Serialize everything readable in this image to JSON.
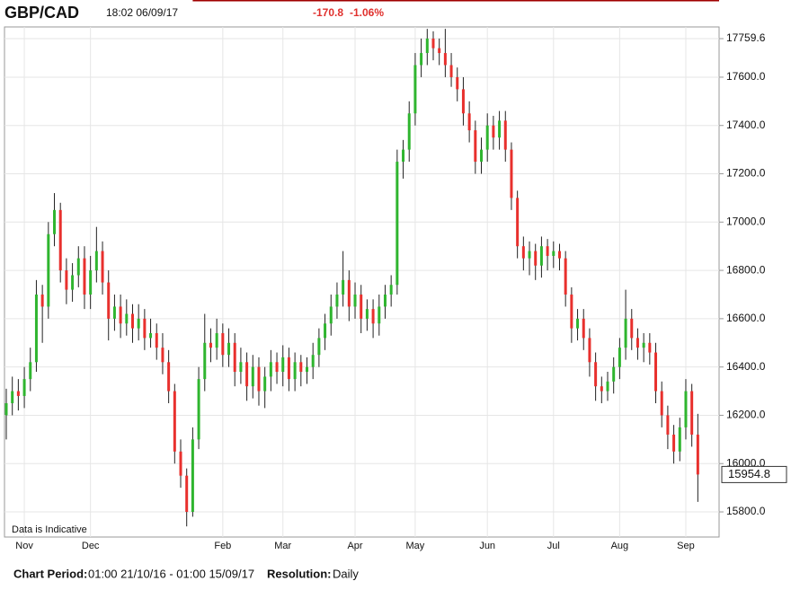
{
  "chart_data": {
    "type": "candlestick",
    "title": "GBP/CAD",
    "timestamp": "18:02 06/09/17",
    "high": [
      16310,
      16360,
      16350,
      16400,
      16480,
      16760,
      16740,
      17000,
      17120,
      17080,
      16850,
      16830,
      16900,
      16900,
      16860,
      16980,
      16920,
      16800,
      16700,
      16700,
      16680,
      16660,
      16660,
      16640,
      16600,
      16580,
      16540,
      16470,
      16330,
      16100,
      15980,
      16150,
      16400,
      16620,
      16560,
      16600,
      16580,
      16560,
      16540,
      16480,
      16460,
      16450,
      16440,
      16400,
      16470,
      16460,
      16490,
      16480,
      16460,
      16450,
      16440,
      16500,
      16560,
      16620,
      16700,
      16750,
      16880,
      16800,
      16750,
      16740,
      16680,
      16680,
      16700,
      16740,
      16780,
      17300,
      17340,
      17500,
      17700,
      17760,
      17800,
      17790,
      17760,
      17800,
      17700,
      17640,
      17600,
      17500,
      17420,
      17350,
      17450,
      17440,
      17460,
      17460,
      17330,
      17130,
      16940,
      16920,
      16910,
      16940,
      16930,
      16920,
      16910,
      16880,
      16730,
      16640,
      16640,
      16560,
      16460,
      16360,
      16380,
      16440,
      16520,
      16720,
      16640,
      16560,
      16540,
      16540,
      16500,
      16340,
      16240,
      16160,
      16190,
      16350,
      16330,
      16206
    ],
    "low": [
      16100,
      16200,
      16220,
      16230,
      16300,
      16380,
      16500,
      16600,
      16900,
      16750,
      16660,
      16670,
      16730,
      16640,
      16640,
      16750,
      16700,
      16510,
      16550,
      16520,
      16530,
      16500,
      16510,
      16470,
      16480,
      16430,
      16370,
      16250,
      16000,
      15900,
      15740,
      15780,
      16060,
      16300,
      16420,
      16430,
      16400,
      16400,
      16320,
      16330,
      16260,
      16270,
      16240,
      16230,
      16300,
      16330,
      16320,
      16300,
      16300,
      16320,
      16330,
      16350,
      16400,
      16470,
      16530,
      16600,
      16650,
      16590,
      16600,
      16540,
      16550,
      16520,
      16530,
      16600,
      16650,
      16700,
      17180,
      17250,
      17400,
      17600,
      17650,
      17670,
      17650,
      17600,
      17560,
      17500,
      17400,
      17330,
      17200,
      17200,
      17250,
      17300,
      17300,
      17250,
      17050,
      16850,
      16800,
      16780,
      16760,
      16770,
      16800,
      16810,
      16800,
      16650,
      16500,
      16510,
      16470,
      16360,
      16260,
      16250,
      16260,
      16290,
      16350,
      16430,
      16470,
      16430,
      16420,
      16410,
      16250,
      16150,
      16060,
      16000,
      16010,
      16100,
      16070,
      15841.5
    ],
    "change": -170.8,
    "change_pct": {
      "value": -1.06,
      "label": "-1.06%"
    },
    "last": 15954.8,
    "note": "Data is Indicative",
    "period_label": "Chart Period:",
    "period": "01:00 21/10/16 - 01:00 15/09/17",
    "resolution_label": "Resolution:",
    "resolution": "Daily",
    "up_color": "#2fb52f",
    "down_color": "#e8302d",
    "level_color": "#a00000",
    "grid": true,
    "ylim": [
      15696,
      17808
    ],
    "yticks": [
      {
        "value": 15800,
        "label": "15800.0"
      },
      {
        "value": 16000,
        "label": "16000.0"
      },
      {
        "value": 16200,
        "label": "16200.0"
      },
      {
        "value": 16400,
        "label": "16400.0"
      },
      {
        "value": 16600,
        "label": "16600.0"
      },
      {
        "value": 16800,
        "label": "16800.0"
      },
      {
        "value": 17000,
        "label": "17000.0"
      },
      {
        "value": 17200,
        "label": "17200.0"
      },
      {
        "value": 17400,
        "label": "17400.0"
      },
      {
        "value": 17600,
        "label": "17600.0"
      },
      17759.6
    ],
    "categories": [
      null,
      null,
      null,
      "Nov",
      null,
      null,
      null,
      null,
      null,
      null,
      null,
      null,
      null,
      null,
      "Dec",
      null,
      null,
      null,
      null,
      null,
      null,
      null,
      null,
      null,
      null,
      null,
      null,
      null,
      null,
      null,
      null,
      null,
      null,
      null,
      null,
      null,
      "Feb",
      null,
      null,
      null,
      null,
      null,
      null,
      null,
      null,
      null,
      "Mar",
      null,
      null,
      null,
      null,
      null,
      null,
      null,
      null,
      null,
      null,
      null,
      "Apr",
      null,
      null,
      null,
      null,
      null,
      null,
      null,
      null,
      null,
      "May",
      null,
      null,
      null,
      null,
      null,
      null,
      null,
      null,
      null,
      null,
      null,
      "Jun",
      null,
      null,
      null,
      null,
      null,
      null,
      null,
      null,
      null,
      null,
      "Jul",
      null,
      null,
      null,
      null,
      null,
      null,
      null,
      null,
      null,
      null,
      "Aug",
      null,
      null,
      null,
      null,
      null,
      null,
      null,
      null,
      null,
      null,
      "Sep",
      null,
      null
    ],
    "open": [
      16200,
      16250,
      16300,
      16280,
      16350,
      16420,
      16700,
      16650,
      16950,
      17050,
      16800,
      16720,
      16780,
      16850,
      16700,
      16800,
      16880,
      16750,
      16600,
      16650,
      16580,
      16620,
      16560,
      16600,
      16520,
      16540,
      16480,
      16420,
      16300,
      16050,
      15950,
      15800,
      16100,
      16350,
      16500,
      16480,
      16540,
      16450,
      16500,
      16380,
      16420,
      16320,
      16400,
      16300,
      16360,
      16420,
      16380,
      16440,
      16350,
      16420,
      16380,
      16400,
      16450,
      16520,
      16580,
      16650,
      16700,
      16760,
      16650,
      16700,
      16600,
      16640,
      16580,
      16650,
      16700,
      16740,
      17250,
      17300,
      17450,
      17650,
      17700,
      17760,
      17720,
      17700,
      17650,
      17600,
      17550,
      17450,
      17380,
      17250,
      17300,
      17400,
      17350,
      17420,
      17300,
      17100,
      16900,
      16850,
      16880,
      16820,
      16900,
      16860,
      16880,
      16850,
      16700,
      16560,
      16600,
      16520,
      16420,
      16320,
      16300,
      16340,
      16400,
      16480,
      16600,
      16520,
      16480,
      16500,
      16460,
      16300,
      16200,
      16120,
      16050,
      16150,
      16300,
      16120
    ],
    "close": [
      16250,
      16300,
      16280,
      16350,
      16420,
      16700,
      16650,
      16950,
      17050,
      16800,
      16720,
      16780,
      16850,
      16700,
      16800,
      16880,
      16750,
      16600,
      16650,
      16580,
      16620,
      16560,
      16600,
      16520,
      16540,
      16480,
      16420,
      16300,
      16050,
      15950,
      15800,
      16100,
      16350,
      16500,
      16480,
      16540,
      16450,
      16500,
      16380,
      16420,
      16320,
      16400,
      16300,
      16360,
      16420,
      16380,
      16440,
      16350,
      16420,
      16380,
      16400,
      16450,
      16520,
      16580,
      16650,
      16700,
      16760,
      16650,
      16700,
      16600,
      16640,
      16580,
      16650,
      16700,
      16740,
      17250,
      17300,
      17450,
      17650,
      17700,
      17760,
      17720,
      17700,
      17650,
      17600,
      17550,
      17450,
      17380,
      17250,
      17300,
      17400,
      17350,
      17420,
      17300,
      17100,
      16900,
      16850,
      16880,
      16820,
      16900,
      16860,
      16880,
      16850,
      16700,
      16560,
      16600,
      16520,
      16420,
      16320,
      16300,
      16340,
      16400,
      16480,
      16600,
      16520,
      16480,
      16500,
      16460,
      16300,
      16200,
      16120,
      16050,
      16150,
      16300,
      16120,
      15954.8
    ]
  }
}
